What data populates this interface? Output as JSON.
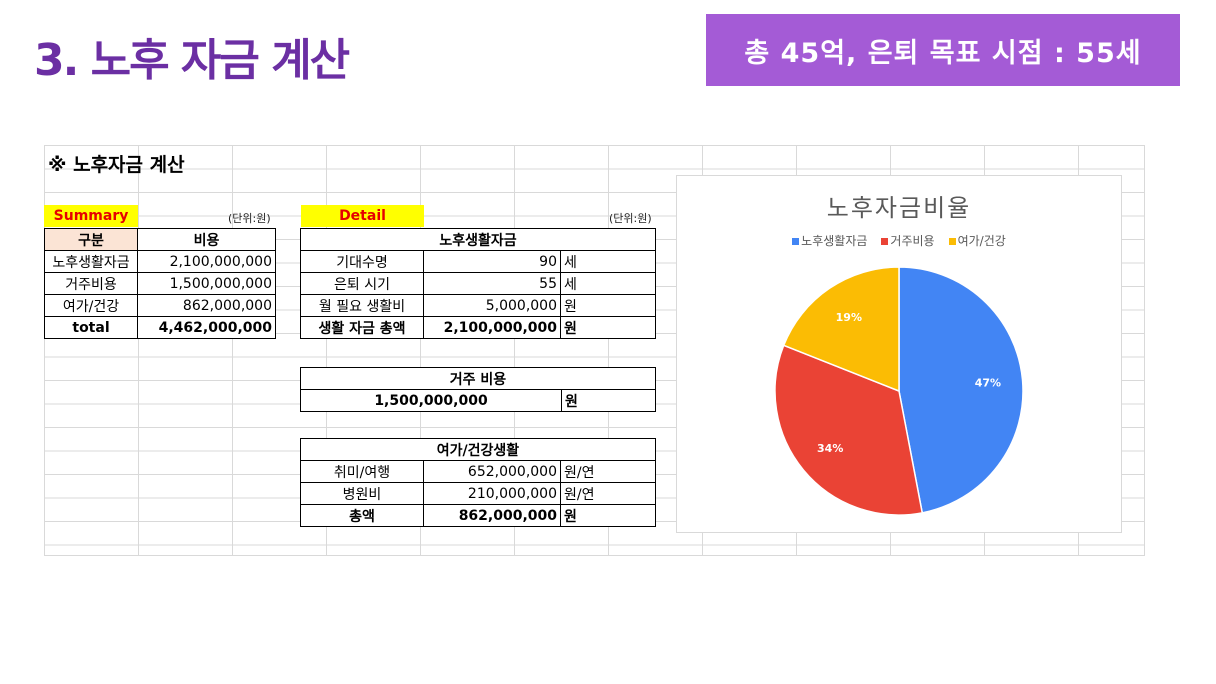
{
  "slide": {
    "title": "3. 노후 자금 계산",
    "banner": "총 45억, 은퇴 목표 시점 : 55세"
  },
  "sheet": {
    "title": "※ 노후자금 계산",
    "summary": {
      "tag": "Summary",
      "unit": "(단위:원)",
      "headers": [
        "구분",
        "비용"
      ],
      "rows": [
        {
          "label": "노후생활자금",
          "value": "2,100,000,000"
        },
        {
          "label": "거주비용",
          "value": "1,500,000,000"
        },
        {
          "label": "여가/건강",
          "value": "862,000,000"
        }
      ],
      "total_label": "total",
      "total_value": "4,462,000,000"
    },
    "detail": {
      "tag": "Detail",
      "unit": "(단위:원)",
      "living": {
        "header": "노후생활자금",
        "rows": [
          {
            "label": "기대수명",
            "value": "90",
            "unit": "세"
          },
          {
            "label": "은퇴 시기",
            "value": "55",
            "unit": "세"
          },
          {
            "label": "월 필요 생활비",
            "value": "5,000,000",
            "unit": "원"
          }
        ],
        "total": {
          "label": "생활 자금 총액",
          "value": "2,100,000,000",
          "unit": "원"
        }
      },
      "housing": {
        "header": "거주 비용",
        "value": "1,500,000,000",
        "unit": "원"
      },
      "leisure": {
        "header": "여가/건강생활",
        "rows": [
          {
            "label": "취미/여행",
            "value": "652,000,000",
            "unit": "원/연"
          },
          {
            "label": "병원비",
            "value": "210,000,000",
            "unit": "원/연"
          }
        ],
        "total": {
          "label": "총액",
          "value": "862,000,000",
          "unit": "원"
        }
      }
    }
  },
  "chart_data": {
    "type": "pie",
    "title": "노후자금비율",
    "legend_position": "top",
    "categories": [
      "노후생활자금",
      "거주비용",
      "여가/건강"
    ],
    "values": [
      47,
      34,
      19
    ],
    "labels": [
      "47%",
      "34%",
      "19%"
    ],
    "colors": [
      "#4285f4",
      "#ea4335",
      "#fbbc04"
    ]
  }
}
